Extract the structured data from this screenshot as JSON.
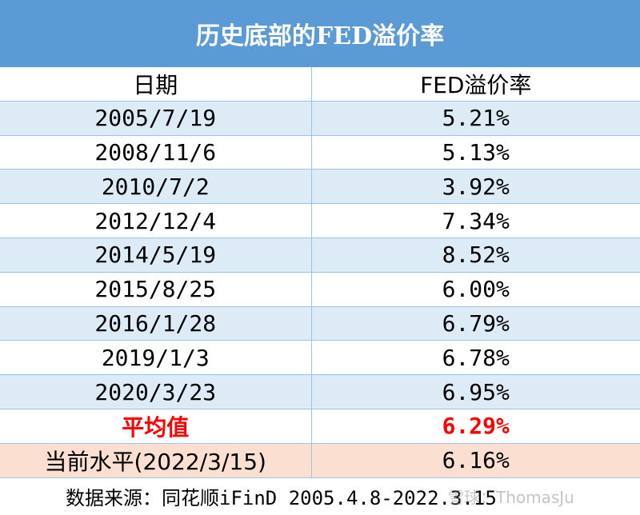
{
  "title": "历史底部的FED溢价率",
  "table": {
    "headers": [
      "日期",
      "FED溢价率"
    ],
    "rows": [
      [
        "2005/7/19",
        "5.21%"
      ],
      [
        "2008/11/6",
        "5.13%"
      ],
      [
        "2010/7/2",
        "3.92%"
      ],
      [
        "2012/12/4",
        "7.34%"
      ],
      [
        "2014/5/19",
        "8.52%"
      ],
      [
        "2015/8/25",
        "6.00%"
      ],
      [
        "2016/1/28",
        "6.79%"
      ],
      [
        "2019/1/3",
        "6.78%"
      ],
      [
        "2020/3/23",
        "6.95%"
      ]
    ],
    "average": [
      "平均值",
      "6.29%"
    ],
    "current": [
      "当前水平(2022/3/15)",
      "6.16%"
    ]
  },
  "source": "数据来源：同花顺iFinD 2005.4.8-2022.3.15",
  "watermark": "雪球：ThomasJu",
  "colors": {
    "title_bg": "#5b9bd5",
    "band": "#ddebf7",
    "average_text": "#ff0000",
    "current_bg": "#fbe0d2"
  }
}
